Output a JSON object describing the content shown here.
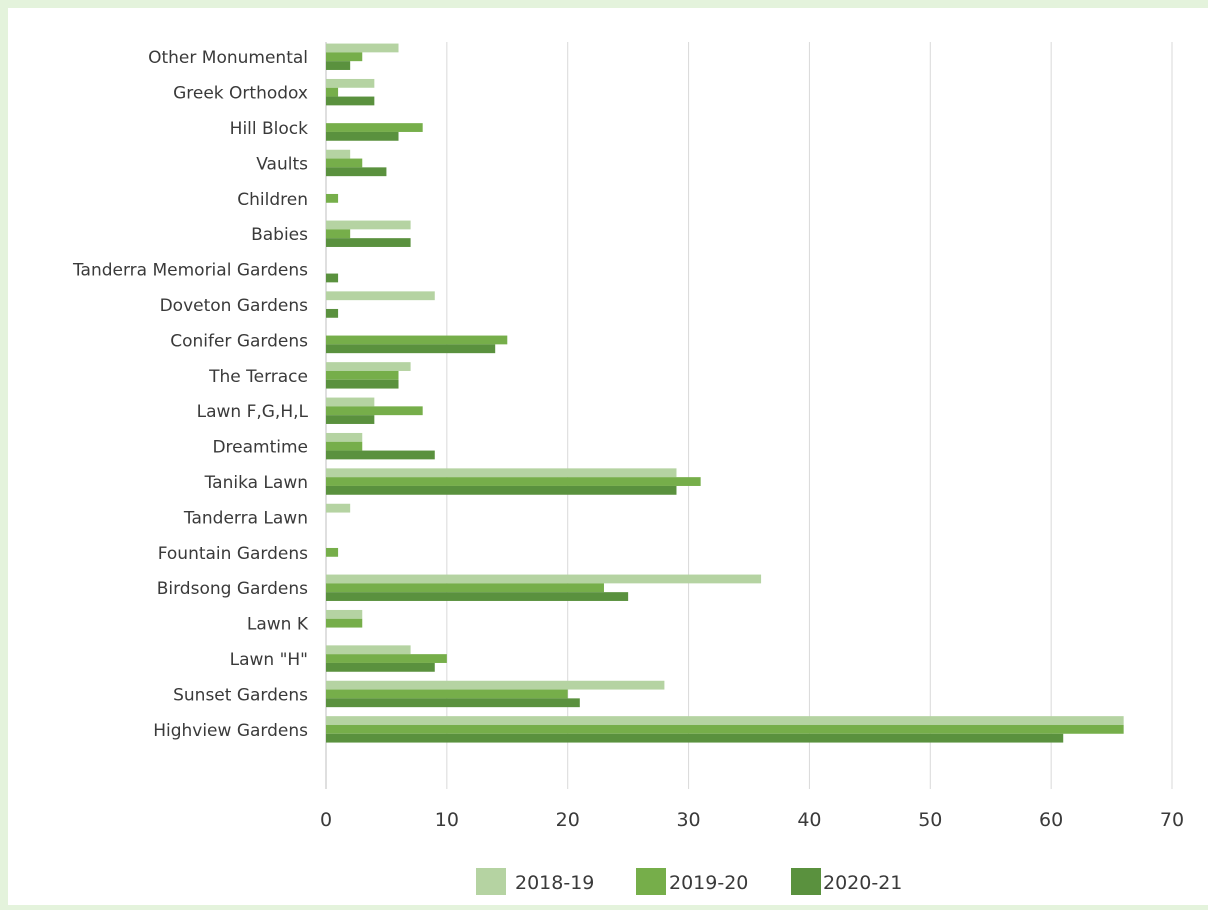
{
  "chart_data": {
    "type": "bar",
    "orientation": "horizontal",
    "title": "",
    "xlabel": "",
    "ylabel": "",
    "xlim": [
      0,
      70
    ],
    "x_ticks": [
      0,
      10,
      20,
      30,
      40,
      50,
      60,
      70
    ],
    "grid": "vertical",
    "legend_position": "bottom",
    "categories": [
      "Other Monumental",
      "Greek Orthodox",
      "Hill Block",
      "Vaults",
      "Children",
      "Babies",
      "Tanderra Memorial Gardens",
      "Doveton Gardens",
      "Conifer Gardens",
      "The Terrace",
      "Lawn F,G,H,L",
      "Dreamtime",
      "Tanika Lawn",
      "Tanderra Lawn",
      "Fountain Gardens",
      "Birdsong Gardens",
      "Lawn K",
      "Lawn \"H\"",
      "Sunset Gardens",
      "Highview Gardens"
    ],
    "series": [
      {
        "name": "2018-19",
        "color": "#b5d3a2",
        "values": [
          6,
          4,
          0,
          2,
          0,
          7,
          0,
          9,
          0,
          7,
          4,
          3,
          29,
          2,
          0,
          36,
          3,
          7,
          28,
          66
        ]
      },
      {
        "name": "2019-20",
        "color": "#76ae4a",
        "values": [
          3,
          1,
          8,
          3,
          1,
          2,
          0,
          0,
          15,
          6,
          8,
          3,
          31,
          0,
          1,
          23,
          3,
          10,
          20,
          66
        ]
      },
      {
        "name": "2020-21",
        "color": "#5a913e",
        "values": [
          2,
          4,
          6,
          5,
          0,
          7,
          1,
          1,
          14,
          6,
          4,
          9,
          29,
          0,
          0,
          25,
          0,
          9,
          21,
          61
        ]
      }
    ]
  }
}
